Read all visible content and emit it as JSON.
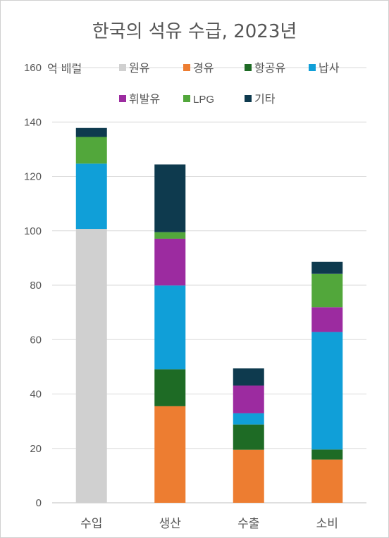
{
  "chart_data": {
    "type": "bar",
    "stacked": true,
    "title": "한국의 석유 수급, 2023년",
    "unit_label": "억 배럴",
    "categories": [
      "수입",
      "생산",
      "수출",
      "소비"
    ],
    "ylim": [
      0,
      160
    ],
    "yticks": [
      0,
      20,
      40,
      60,
      80,
      100,
      120,
      140,
      160
    ],
    "grid": true,
    "legend_position": "top",
    "series": [
      {
        "name": "원유",
        "color": "#d0d0d0",
        "values": [
          100.7,
          0,
          0,
          0
        ]
      },
      {
        "name": "경유",
        "color": "#ed7d31",
        "values": [
          0,
          35.5,
          19.5,
          15.9
        ]
      },
      {
        "name": "항공유",
        "color": "#1e6b25",
        "values": [
          0,
          13.6,
          9.3,
          3.7
        ]
      },
      {
        "name": "납사",
        "color": "#109fd8",
        "values": [
          24.0,
          30.8,
          4.1,
          43.2
        ]
      },
      {
        "name": "휘발유",
        "color": "#9c2ba0",
        "values": [
          0,
          17.2,
          10.2,
          9.1
        ]
      },
      {
        "name": "LPG",
        "color": "#52a73b",
        "values": [
          9.8,
          2.4,
          0,
          12.3
        ]
      },
      {
        "name": "기타",
        "color": "#0e3a4e",
        "values": [
          3.3,
          24.9,
          6.3,
          4.4
        ]
      }
    ]
  }
}
